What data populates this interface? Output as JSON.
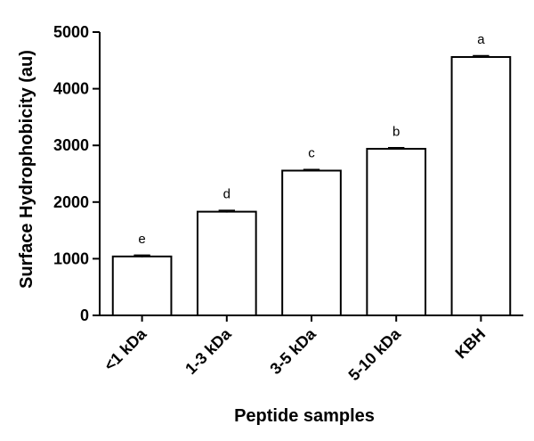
{
  "chart_data": {
    "type": "bar",
    "categories": [
      "<1 kDa",
      "1-3 kDa",
      "3-5 kDa",
      "5-10 kDa",
      "KBH"
    ],
    "values": [
      1040,
      1830,
      2555,
      2940,
      4560
    ],
    "errors": [
      15,
      15,
      12,
      12,
      15
    ],
    "significance_labels": [
      "e",
      "d",
      "c",
      "b",
      "a"
    ],
    "xlabel": "Peptide samples",
    "ylabel": "Surface Hydrophobicity (au)",
    "ylim": [
      0,
      5000
    ],
    "yticks": [
      0,
      1000,
      2000,
      3000,
      4000,
      5000
    ],
    "grid": false,
    "bar_fill": "#ffffff",
    "bar_stroke": "#000000"
  }
}
